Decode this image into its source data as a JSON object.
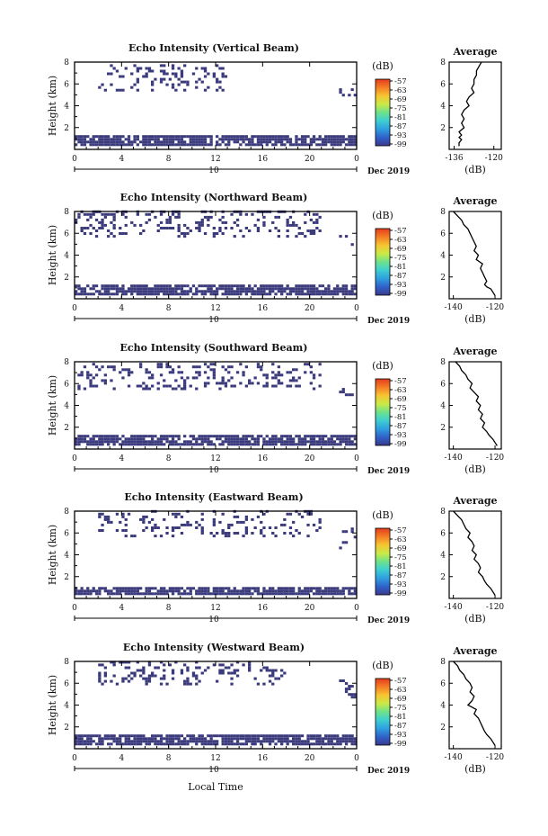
{
  "figure": {
    "xlabel": "Local Time",
    "date": "Dec 2019",
    "colorbar_unit": "(dB)",
    "colorbar_ticks": [
      "-57",
      "-63",
      "-69",
      "-75",
      "-81",
      "-87",
      "-93",
      "-99"
    ],
    "colorbar_colors": [
      "#3a3a8c",
      "#2f5fc8",
      "#2f9fe0",
      "#3fd0d0",
      "#6ee28a",
      "#c8ea48",
      "#f7c531",
      "#f57b24",
      "#e23c1e"
    ]
  },
  "panels": [
    {
      "title": "Echo Intensity (Vertical Beam)",
      "ylabel": "Height (km)",
      "profile_title": "Average",
      "profile_xlabel": "(dB)",
      "x_ticks": [
        "0",
        "4",
        "8",
        "12",
        "16",
        "20",
        "0"
      ],
      "x_sub": "10",
      "y_ticks": [
        "8",
        "6",
        "4",
        "2"
      ],
      "profile_x_ticks": [
        "-136",
        "-120"
      ]
    },
    {
      "title": "Echo Intensity (Northward Beam)",
      "ylabel": "Height (km)",
      "profile_title": "Average",
      "profile_xlabel": "(dB)",
      "x_ticks": [
        "0",
        "4",
        "8",
        "12",
        "16",
        "20",
        "0"
      ],
      "x_sub": "10",
      "y_ticks": [
        "8",
        "6",
        "4",
        "2"
      ],
      "profile_x_ticks": [
        "-140",
        "-120"
      ]
    },
    {
      "title": "Echo Intensity (Southward Beam)",
      "ylabel": "Height (km)",
      "profile_title": "Average",
      "profile_xlabel": "(dB)",
      "x_ticks": [
        "0",
        "4",
        "8",
        "12",
        "16",
        "20",
        "0"
      ],
      "x_sub": "10",
      "y_ticks": [
        "8",
        "6",
        "4",
        "2"
      ],
      "profile_x_ticks": [
        "-140",
        "-120"
      ]
    },
    {
      "title": "Echo Intensity (Eastward Beam)",
      "ylabel": "Height (km)",
      "profile_title": "Average",
      "profile_xlabel": "(dB)",
      "x_ticks": [
        "0",
        "4",
        "8",
        "12",
        "16",
        "20",
        "0"
      ],
      "x_sub": "10",
      "y_ticks": [
        "8",
        "6",
        "4",
        "2"
      ],
      "profile_x_ticks": [
        "-140",
        "-120"
      ]
    },
    {
      "title": "Echo Intensity (Westward Beam)",
      "ylabel": "Height (km)",
      "profile_title": "Average",
      "profile_xlabel": "(dB)",
      "x_ticks": [
        "0",
        "4",
        "8",
        "12",
        "16",
        "20",
        "0"
      ],
      "x_sub": "10",
      "y_ticks": [
        "8",
        "6",
        "4",
        "2"
      ],
      "profile_x_ticks": [
        "-140",
        "-120"
      ]
    }
  ],
  "chart_data": [
    {
      "type": "heatmap",
      "title": "Echo Intensity (Vertical Beam)",
      "xlabel": "Local Time",
      "ylabel": "Height (km)",
      "xlim": [
        0,
        24
      ],
      "ylim": [
        0,
        8
      ],
      "colorbar": {
        "unit": "(dB)",
        "range": [
          -99,
          -57
        ]
      },
      "echo_regions": [
        {
          "x": [
            0,
            24
          ],
          "y": [
            0.3,
            1.1
          ]
        },
        {
          "x": [
            2,
            13
          ],
          "y": [
            5.3,
            7.8
          ]
        },
        {
          "x": [
            22.5,
            24
          ],
          "y": [
            4.6,
            5.4
          ]
        }
      ],
      "profile": {
        "title": "Average",
        "xlabel": "(dB)",
        "xlim": [
          -138,
          -117
        ],
        "x": [
          -125,
          -126,
          -127,
          -127,
          -128,
          -128,
          -129,
          -128,
          -130,
          -131,
          -130,
          -132,
          -133,
          -132,
          -133,
          -132,
          -134,
          -133,
          -134,
          -133,
          -134,
          -134
        ],
        "y": [
          8,
          7.6,
          7.2,
          6.8,
          6.4,
          6.0,
          5.6,
          5.2,
          4.8,
          4.4,
          4.0,
          3.6,
          3.2,
          2.8,
          2.4,
          2.0,
          1.6,
          1.3,
          1.1,
          0.9,
          0.6,
          0.3
        ]
      }
    },
    {
      "type": "heatmap",
      "title": "Echo Intensity (Northward Beam)",
      "xlabel": "Local Time",
      "ylabel": "Height (km)",
      "xlim": [
        0,
        24
      ],
      "ylim": [
        0,
        8
      ],
      "colorbar": {
        "unit": "(dB)",
        "range": [
          -99,
          -57
        ]
      },
      "echo_regions": [
        {
          "x": [
            0,
            24
          ],
          "y": [
            0.3,
            1.3
          ]
        },
        {
          "x": [
            0,
            21
          ],
          "y": [
            5.6,
            7.9
          ]
        },
        {
          "x": [
            22.5,
            24
          ],
          "y": [
            4.6,
            5.8
          ]
        }
      ],
      "profile": {
        "title": "Average",
        "xlabel": "(dB)",
        "xlim": [
          -142,
          -117
        ],
        "x": [
          -140,
          -138,
          -136,
          -135,
          -133,
          -132,
          -131,
          -130,
          -129,
          -130,
          -128,
          -129,
          -126,
          -127,
          -126,
          -125,
          -124,
          -125,
          -124,
          -122,
          -121,
          -120
        ],
        "y": [
          8,
          7.6,
          7.2,
          6.8,
          6.4,
          6.0,
          5.6,
          5.2,
          4.8,
          4.4,
          4.0,
          3.6,
          3.2,
          2.8,
          2.4,
          2.0,
          1.6,
          1.3,
          1.1,
          0.9,
          0.6,
          0.3
        ]
      }
    },
    {
      "type": "heatmap",
      "title": "Echo Intensity (Southward Beam)",
      "xlabel": "Local Time",
      "ylabel": "Height (km)",
      "xlim": [
        0,
        24
      ],
      "ylim": [
        0,
        8
      ],
      "colorbar": {
        "unit": "(dB)",
        "range": [
          -99,
          -57
        ]
      },
      "echo_regions": [
        {
          "x": [
            0,
            24
          ],
          "y": [
            0.3,
            1.2
          ]
        },
        {
          "x": [
            0,
            21
          ],
          "y": [
            5.4,
            7.9
          ]
        },
        {
          "x": [
            22.5,
            24
          ],
          "y": [
            4.6,
            5.6
          ]
        }
      ],
      "profile": {
        "title": "Average",
        "xlabel": "(dB)",
        "xlim": [
          -142,
          -117
        ],
        "x": [
          -139,
          -137,
          -136,
          -134,
          -133,
          -131,
          -132,
          -130,
          -128,
          -129,
          -127,
          -128,
          -126,
          -127,
          -125,
          -126,
          -124,
          -123,
          -122,
          -121,
          -120,
          -119
        ],
        "y": [
          8,
          7.6,
          7.2,
          6.8,
          6.4,
          6.0,
          5.6,
          5.2,
          4.8,
          4.4,
          4.0,
          3.6,
          3.2,
          2.8,
          2.4,
          2.0,
          1.6,
          1.3,
          1.1,
          0.9,
          0.6,
          0.3
        ]
      }
    },
    {
      "type": "heatmap",
      "title": "Echo Intensity (Eastward Beam)",
      "xlabel": "Local Time",
      "ylabel": "Height (km)",
      "xlim": [
        0,
        24
      ],
      "ylim": [
        0,
        8
      ],
      "colorbar": {
        "unit": "(dB)",
        "range": [
          -99,
          -57
        ]
      },
      "echo_regions": [
        {
          "x": [
            0,
            24
          ],
          "y": [
            0.3,
            1.0
          ]
        },
        {
          "x": [
            2,
            21
          ],
          "y": [
            5.6,
            7.9
          ]
        },
        {
          "x": [
            22.5,
            24
          ],
          "y": [
            4.0,
            6.5
          ]
        }
      ],
      "profile": {
        "title": "Average",
        "xlabel": "(dB)",
        "xlim": [
          -142,
          -117
        ],
        "x": [
          -140,
          -138,
          -136,
          -135,
          -134,
          -132,
          -133,
          -131,
          -130,
          -131,
          -129,
          -130,
          -128,
          -127,
          -128,
          -126,
          -125,
          -124,
          -123,
          -122,
          -121,
          -120
        ],
        "y": [
          8,
          7.6,
          7.2,
          6.8,
          6.4,
          6.0,
          5.6,
          5.2,
          4.8,
          4.4,
          4.0,
          3.6,
          3.2,
          2.8,
          2.4,
          2.0,
          1.6,
          1.3,
          1.1,
          0.9,
          0.6,
          0.3
        ]
      }
    },
    {
      "type": "heatmap",
      "title": "Echo Intensity (Westward Beam)",
      "xlabel": "Local Time",
      "ylabel": "Height (km)",
      "xlim": [
        0,
        24
      ],
      "ylim": [
        0,
        8
      ],
      "colorbar": {
        "unit": "(dB)",
        "range": [
          -99,
          -57
        ]
      },
      "echo_regions": [
        {
          "x": [
            0,
            24
          ],
          "y": [
            0.3,
            1.2
          ]
        },
        {
          "x": [
            2,
            18
          ],
          "y": [
            5.8,
            7.9
          ]
        },
        {
          "x": [
            22.5,
            24
          ],
          "y": [
            4.6,
            6.2
          ]
        }
      ],
      "profile": {
        "title": "Average",
        "xlabel": "(dB)",
        "xlim": [
          -142,
          -117
        ],
        "x": [
          -140,
          -138,
          -137,
          -135,
          -134,
          -132,
          -131,
          -132,
          -130,
          -131,
          -133,
          -129,
          -130,
          -128,
          -127,
          -126,
          -125,
          -124,
          -123,
          -122,
          -121,
          -120
        ],
        "y": [
          8,
          7.6,
          7.2,
          6.8,
          6.4,
          6.0,
          5.6,
          5.2,
          4.8,
          4.4,
          4.0,
          3.6,
          3.2,
          2.8,
          2.4,
          2.0,
          1.6,
          1.3,
          1.1,
          0.9,
          0.6,
          0.3
        ]
      }
    }
  ]
}
